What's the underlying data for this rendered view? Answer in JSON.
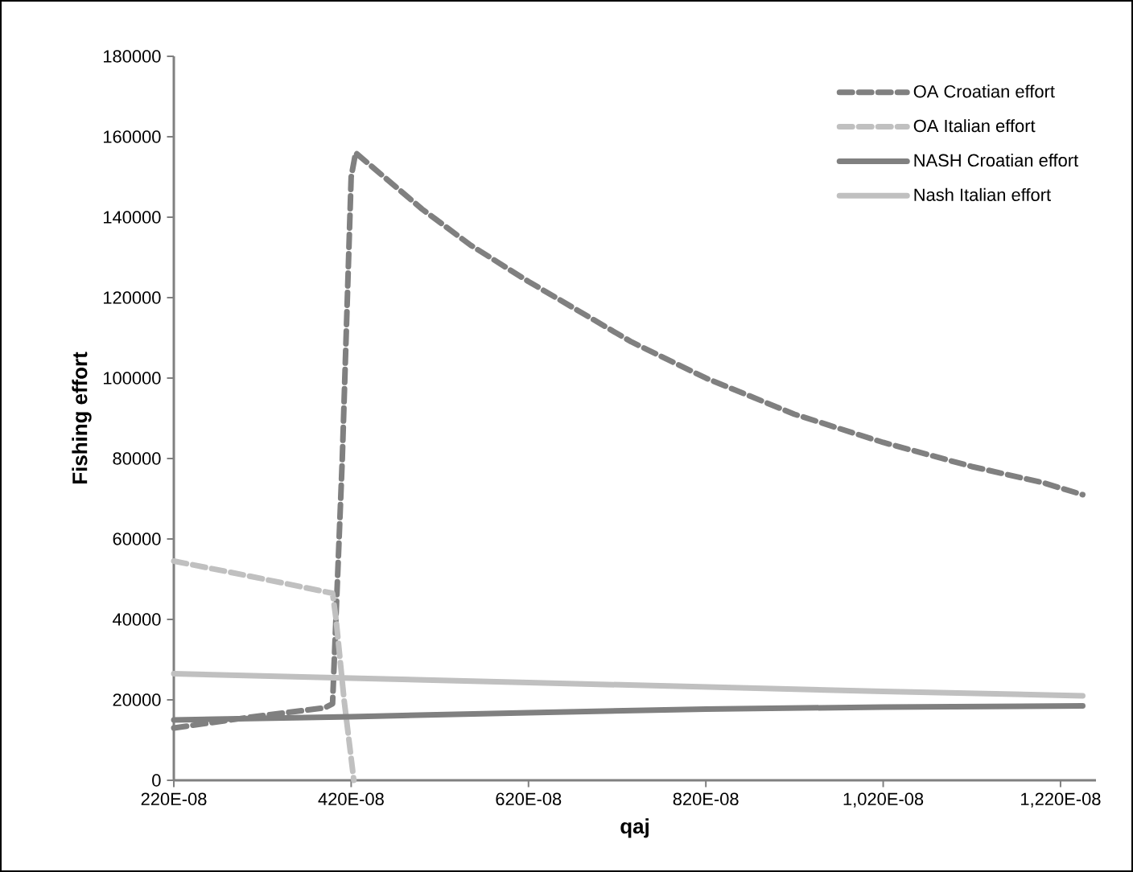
{
  "chart_data": {
    "type": "line",
    "xlabel": "qaj",
    "ylabel": "Fishing effort",
    "legend": "top right",
    "grid": false,
    "xlim": [
      2.2e-06,
      1.26e-05
    ],
    "ylim": [
      0,
      180000
    ],
    "xticks": [
      {
        "value": 2.2e-06,
        "label": "220E-08"
      },
      {
        "value": 4.2e-06,
        "label": "420E-08"
      },
      {
        "value": 6.2e-06,
        "label": "620E-08"
      },
      {
        "value": 8.2e-06,
        "label": "820E-08"
      },
      {
        "value": 1.02e-05,
        "label": "1,020E-08"
      },
      {
        "value": 1.22e-05,
        "label": "1,220E-08"
      }
    ],
    "yticks": [
      0,
      20000,
      40000,
      60000,
      80000,
      100000,
      120000,
      140000,
      160000,
      180000
    ],
    "series": [
      {
        "name": "OA Croatian effort",
        "color": "#808080",
        "line_style": "dashed",
        "x": [
          2.2e-06,
          3e-06,
          3.9e-06,
          3.99e-06,
          4.1e-06,
          4.2e-06,
          4.25e-06,
          5e-06,
          5.55e-06,
          6.2e-06,
          7.36e-06,
          8.2e-06,
          9.2e-06,
          1.02e-05,
          1.12e-05,
          1.2e-05,
          1.245e-05
        ],
        "values": [
          13000,
          15500,
          18000,
          19000,
          80000,
          150000,
          156000,
          142000,
          133000,
          124000,
          109000,
          100000,
          91000,
          84000,
          78000,
          74000,
          71000
        ]
      },
      {
        "name": "OA Italian effort",
        "color": "#c0c0c0",
        "line_style": "dashed",
        "x": [
          2.2e-06,
          3e-06,
          3.99e-06,
          4.03e-06,
          4.12e-06,
          4.23e-06
        ],
        "values": [
          54500,
          51000,
          46500,
          40000,
          20000,
          0
        ]
      },
      {
        "name": "NASH Croatian effort",
        "color": "#808080",
        "line_style": "solid",
        "x": [
          2.2e-06,
          4.2e-06,
          6.2e-06,
          8.2e-06,
          1.02e-05,
          1.245e-05
        ],
        "values": [
          15000,
          15800,
          16800,
          17700,
          18200,
          18500
        ]
      },
      {
        "name": "Nash Italian effort",
        "color": "#c0c0c0",
        "line_style": "solid",
        "x": [
          2.2e-06,
          4.2e-06,
          6.2e-06,
          8.2e-06,
          1.02e-05,
          1.245e-05
        ],
        "values": [
          26500,
          25400,
          24300,
          23200,
          22100,
          21000
        ]
      }
    ]
  }
}
